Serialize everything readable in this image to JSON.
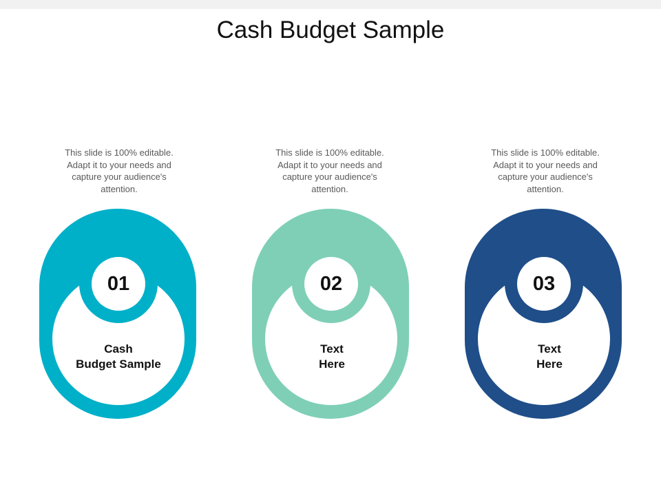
{
  "title": "Cash Budget Sample",
  "items": [
    {
      "number": "01",
      "label_line1": "Cash",
      "label_line2": "Budget Sample",
      "description": "This slide is 100% editable. Adapt it to your needs and capture your audience's attention.",
      "color": "#00B0C8"
    },
    {
      "number": "02",
      "label_line1": "Text",
      "label_line2": "Here",
      "description": "This slide is 100% editable. Adapt it to your needs and capture your audience's attention.",
      "color": "#7FCFB7"
    },
    {
      "number": "03",
      "label_line1": "Text",
      "label_line2": "Here",
      "description": "This slide is 100% editable. Adapt it to your needs and capture your audience's attention.",
      "color": "#1F4E89"
    }
  ]
}
